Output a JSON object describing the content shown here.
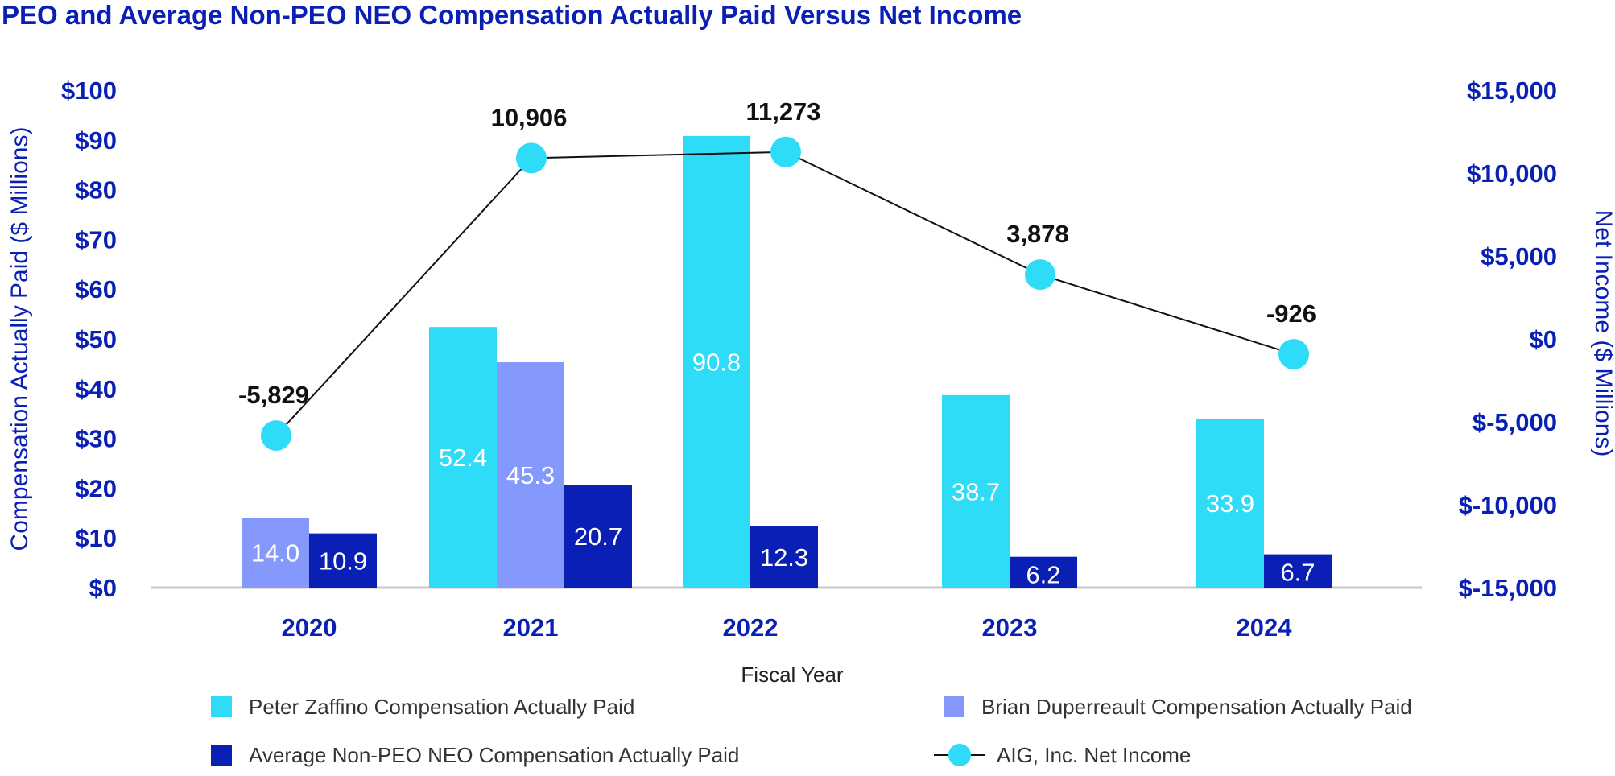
{
  "chart_data": {
    "type": "bar",
    "title": "PEO and Average Non-PEO NEO Compensation Actually Paid Versus Net Income",
    "xlabel": "Fiscal Year",
    "ylabel": "Compensation Actually Paid ($ Millions)",
    "ylabel_right": "Net Income ($ Millions)",
    "categories": [
      "2020",
      "2021",
      "2022",
      "2023",
      "2024"
    ],
    "ylim": [
      0,
      100
    ],
    "ylim_right": [
      -15000,
      15000
    ],
    "yticks": [
      "$0",
      "$10",
      "$20",
      "$30",
      "$40",
      "$50",
      "$60",
      "$70",
      "$80",
      "$90",
      "$100"
    ],
    "yticks_right": [
      "$-15,000",
      "$-10,000",
      "$-5,000",
      "$0",
      "$5,000",
      "$10,000",
      "$15,000"
    ],
    "series": [
      {
        "name": "Peter Zaffino Compensation Actually Paid",
        "type": "bar",
        "color": "#2fdcf7",
        "values": [
          null,
          52.4,
          90.8,
          38.7,
          33.9
        ],
        "labels": [
          "",
          "52.4",
          "90.8",
          "38.7",
          "33.9"
        ]
      },
      {
        "name": "Brian Duperreault Compensation Actually Paid",
        "type": "bar",
        "color": "#8598fb",
        "values": [
          14.0,
          45.3,
          null,
          null,
          null
        ],
        "labels": [
          "14.0",
          "45.3",
          "",
          "",
          ""
        ]
      },
      {
        "name": "Average Non-PEO NEO Compensation Actually Paid",
        "type": "bar",
        "color": "#0a1fb4",
        "values": [
          10.9,
          20.7,
          12.3,
          6.2,
          6.7
        ],
        "labels": [
          "10.9",
          "20.7",
          "12.3",
          "6.2",
          "6.7"
        ]
      },
      {
        "name": "AIG, Inc. Net Income",
        "type": "line",
        "axis": "right",
        "color": "#2fdcf7",
        "line_color": "#111111",
        "values": [
          -5829,
          10906,
          11273,
          3878,
          -926
        ],
        "labels": [
          "-5,829",
          "10,906",
          "11,273",
          "3,878",
          "-926"
        ]
      }
    ]
  }
}
